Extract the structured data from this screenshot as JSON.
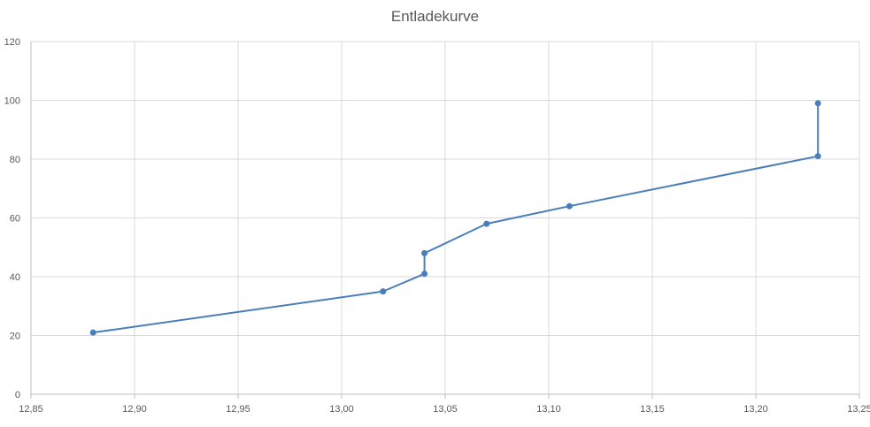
{
  "chart_data": {
    "type": "scatter",
    "title": "Entladekurve",
    "xlabel": "",
    "ylabel": "",
    "xlim": [
      12.85,
      13.25
    ],
    "ylim": [
      0,
      120
    ],
    "x_ticks": [
      12.85,
      12.9,
      12.95,
      13.0,
      13.05,
      13.1,
      13.15,
      13.2,
      13.25
    ],
    "x_tick_labels": [
      "12,85",
      "12,90",
      "12,95",
      "13,00",
      "13,05",
      "13,10",
      "13,15",
      "13,20",
      "13,25"
    ],
    "y_ticks": [
      0,
      20,
      40,
      60,
      80,
      100,
      120
    ],
    "y_tick_labels": [
      "0",
      "20",
      "40",
      "60",
      "80",
      "100",
      "120"
    ],
    "grid": true,
    "legend": "none",
    "series": [
      {
        "x": [
          12.88,
          13.02,
          13.04,
          13.04,
          13.07,
          13.11,
          13.23,
          13.23
        ],
        "y": [
          21,
          35,
          41,
          48,
          58,
          64,
          81,
          99
        ],
        "color": "#4a7ebb"
      }
    ]
  }
}
